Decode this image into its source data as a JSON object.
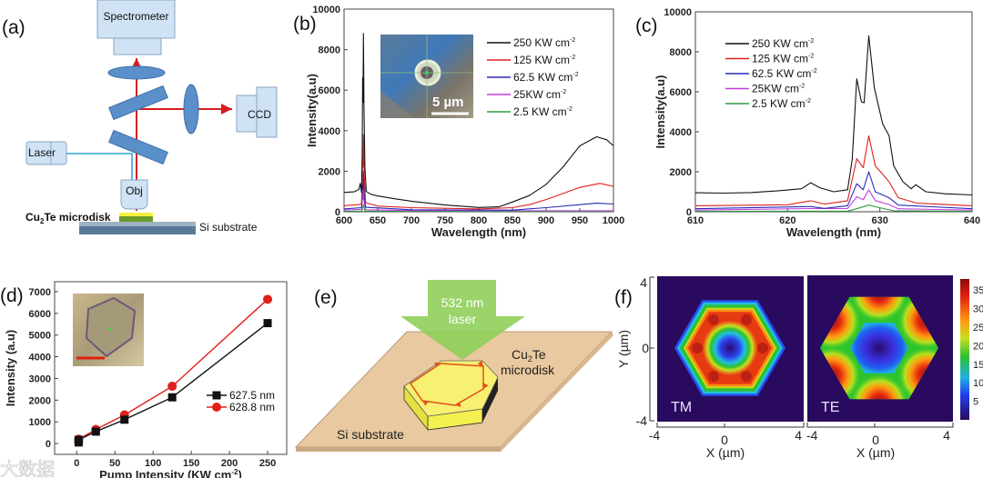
{
  "panel_labels": {
    "a": "(a)",
    "b": "(b)",
    "c": "(c)",
    "d": "(d)",
    "e": "(e)",
    "f": "(f)"
  },
  "setup_diagram": {
    "spectrometer": "Spectrometer",
    "ccd": "CCD",
    "laser": "Laser",
    "objective": "Obj",
    "microdisk_label": "Cu",
    "microdisk_sub": "2",
    "microdisk_rest": "Te microdisk",
    "substrate_label": "Si substrate"
  },
  "inset_b": {
    "scale_bar": "5 µm"
  },
  "diagram_e": {
    "laser_line1": "532 nm",
    "laser_line2": "laser",
    "disk_line1_a": "Cu",
    "disk_line1_sub": "2",
    "disk_line1_b": "Te",
    "disk_line2": "microdisk",
    "substrate": "Si substrate"
  },
  "watermark": "大数据",
  "colors": {
    "black": "#111111",
    "red": "#e0201c",
    "blue": "#2a2ab8",
    "magenta": "#c23ee0",
    "green": "#2f9a3f"
  },
  "chart_data": [
    {
      "id": "b",
      "type": "line",
      "xlabel": "Wavelength (nm)",
      "ylabel": "Intensity(a.u)",
      "xlim": [
        600,
        1000
      ],
      "ylim": [
        0,
        10000
      ],
      "xticks": [
        600,
        650,
        700,
        750,
        800,
        850,
        900,
        950,
        1000
      ],
      "yticks": [
        0,
        2000,
        4000,
        6000,
        8000,
        10000
      ],
      "legend": "top-right",
      "series": [
        {
          "name": "250 KW cm",
          "sup": "-2",
          "color": "#111111",
          "points": [
            [
              600,
              950
            ],
            [
              615,
              980
            ],
            [
              622,
              1100
            ],
            [
              624,
              1400
            ],
            [
              626,
              950
            ],
            [
              627,
              3000
            ],
            [
              627.5,
              6600
            ],
            [
              628.1,
              5400
            ],
            [
              628.8,
              8800
            ],
            [
              629.6,
              5200
            ],
            [
              631,
              2200
            ],
            [
              633,
              1000
            ],
            [
              640,
              860
            ],
            [
              650,
              780
            ],
            [
              675,
              640
            ],
            [
              700,
              520
            ],
            [
              750,
              330
            ],
            [
              800,
              210
            ],
            [
              830,
              240
            ],
            [
              850,
              480
            ],
            [
              875,
              800
            ],
            [
              900,
              1350
            ],
            [
              925,
              2200
            ],
            [
              950,
              3250
            ],
            [
              975,
              3700
            ],
            [
              990,
              3550
            ],
            [
              1000,
              3250
            ]
          ]
        },
        {
          "name": "125 KW cm",
          "sup": "-2",
          "color": "#e0201c",
          "points": [
            [
              600,
              300
            ],
            [
              622,
              350
            ],
            [
              626,
              400
            ],
            [
              627.5,
              2600
            ],
            [
              628.1,
              2200
            ],
            [
              628.8,
              3800
            ],
            [
              630,
              1800
            ],
            [
              632,
              450
            ],
            [
              650,
              280
            ],
            [
              700,
              200
            ],
            [
              800,
              140
            ],
            [
              850,
              200
            ],
            [
              875,
              350
            ],
            [
              900,
              600
            ],
            [
              950,
              1200
            ],
            [
              980,
              1400
            ],
            [
              1000,
              1250
            ]
          ]
        },
        {
          "name": "62.5 KW cm",
          "sup": "-2",
          "color": "#2a2ab8",
          "points": [
            [
              600,
              140
            ],
            [
              626,
              200
            ],
            [
              627.5,
              1350
            ],
            [
              628.1,
              1100
            ],
            [
              628.8,
              2000
            ],
            [
              630,
              800
            ],
            [
              632,
              220
            ],
            [
              700,
              100
            ],
            [
              850,
              80
            ],
            [
              900,
              200
            ],
            [
              950,
              350
            ],
            [
              975,
              420
            ],
            [
              1000,
              380
            ]
          ]
        },
        {
          "name": "25KW cm",
          "sup": "-2",
          "color": "#c23ee0",
          "points": [
            [
              600,
              80
            ],
            [
              626,
              120
            ],
            [
              627.5,
              750
            ],
            [
              628.1,
              600
            ],
            [
              628.8,
              1050
            ],
            [
              630,
              450
            ],
            [
              632,
              100
            ],
            [
              700,
              60
            ],
            [
              1000,
              50
            ]
          ]
        },
        {
          "name": "2.5 KW cm",
          "sup": "-2",
          "color": "#2f9a3f",
          "points": [
            [
              600,
              20
            ],
            [
              626.5,
              30
            ],
            [
              628.8,
              350
            ],
            [
              631,
              30
            ],
            [
              1000,
              20
            ]
          ]
        }
      ]
    },
    {
      "id": "c",
      "type": "line",
      "xlabel": "Wavelength (nm)",
      "ylabel": "Intensity(a.u)",
      "xlim": [
        610,
        640
      ],
      "ylim": [
        0,
        10000
      ],
      "xticks": [
        610,
        620,
        630,
        640
      ],
      "yticks": [
        0,
        2000,
        4000,
        6000,
        8000,
        10000
      ],
      "legend": "top-left",
      "series": [
        {
          "name": "250 KW cm",
          "sup": "-2",
          "color": "#111111",
          "points": [
            [
              610,
              950
            ],
            [
              613,
              930
            ],
            [
              616,
              960
            ],
            [
              619,
              1050
            ],
            [
              621.5,
              1150
            ],
            [
              622.5,
              1450
            ],
            [
              623.5,
              1200
            ],
            [
              625,
              1000
            ],
            [
              626.5,
              1100
            ],
            [
              627,
              2600
            ],
            [
              627.5,
              6650
            ],
            [
              628,
              5500
            ],
            [
              628.3,
              5450
            ],
            [
              628.8,
              8800
            ],
            [
              629.4,
              6200
            ],
            [
              630.3,
              4400
            ],
            [
              631,
              3800
            ],
            [
              631.5,
              2300
            ],
            [
              632.5,
              1500
            ],
            [
              633.4,
              1150
            ],
            [
              633.9,
              1350
            ],
            [
              635,
              1000
            ],
            [
              637,
              900
            ],
            [
              640,
              840
            ]
          ]
        },
        {
          "name": "125 KW cm",
          "sup": "-2",
          "color": "#e0201c",
          "points": [
            [
              610,
              300
            ],
            [
              620,
              350
            ],
            [
              622.5,
              550
            ],
            [
              624,
              380
            ],
            [
              626.5,
              550
            ],
            [
              627.5,
              2650
            ],
            [
              628.2,
              2200
            ],
            [
              628.8,
              3800
            ],
            [
              629.5,
              2300
            ],
            [
              631,
              1500
            ],
            [
              632,
              700
            ],
            [
              634,
              430
            ],
            [
              640,
              300
            ]
          ]
        },
        {
          "name": "62.5 KW cm",
          "sup": "-2",
          "color": "#2a2ab8",
          "points": [
            [
              610,
              150
            ],
            [
              622.5,
              260
            ],
            [
              624,
              170
            ],
            [
              626.5,
              300
            ],
            [
              627.5,
              1400
            ],
            [
              628.2,
              1100
            ],
            [
              628.8,
              2000
            ],
            [
              629.5,
              1000
            ],
            [
              631,
              700
            ],
            [
              632,
              330
            ],
            [
              640,
              150
            ]
          ]
        },
        {
          "name": "25KW cm",
          "sup": "-2",
          "color": "#c23ee0",
          "points": [
            [
              610,
              80
            ],
            [
              622.5,
              160
            ],
            [
              626.5,
              160
            ],
            [
              627.5,
              750
            ],
            [
              628.2,
              600
            ],
            [
              628.8,
              1100
            ],
            [
              629.5,
              560
            ],
            [
              631,
              360
            ],
            [
              632,
              150
            ],
            [
              640,
              80
            ]
          ]
        },
        {
          "name": "2.5 KW cm",
          "sup": "-2",
          "color": "#2f9a3f",
          "points": [
            [
              610,
              20
            ],
            [
              626.5,
              30
            ],
            [
              627.5,
              150
            ],
            [
              628.8,
              330
            ],
            [
              630,
              200
            ],
            [
              631.5,
              50
            ],
            [
              640,
              20
            ]
          ]
        }
      ]
    },
    {
      "id": "d",
      "type": "line",
      "xlabel": "Pump Intensity (KW cm",
      "xlabel_sup": "-2",
      "xlabel_end": ")",
      "ylabel": "Intensity (a.u)",
      "xlim": [
        -29,
        275
      ],
      "ylim": [
        -500,
        7460
      ],
      "xticks": [
        0,
        50,
        100,
        150,
        200,
        250
      ],
      "yticks": [
        0,
        1000,
        2000,
        3000,
        4000,
        5000,
        6000,
        7000
      ],
      "legend": "right",
      "series": [
        {
          "name": "627.5 nm",
          "marker": "square",
          "color": "#111111",
          "points": [
            [
              2.5,
              50
            ],
            [
              2.5,
              170
            ],
            [
              25,
              550
            ],
            [
              62.5,
              1100
            ],
            [
              125,
              2130
            ],
            [
              250,
              5550
            ]
          ]
        },
        {
          "name": "628.8 nm",
          "marker": "circle",
          "color": "#e0201c",
          "points": [
            [
              2.5,
              80
            ],
            [
              2.5,
              200
            ],
            [
              25,
              650
            ],
            [
              62.5,
              1320
            ],
            [
              125,
              2640
            ],
            [
              250,
              6650
            ]
          ]
        }
      ]
    },
    {
      "id": "f",
      "type": "heatmap",
      "maps": [
        "TM",
        "TE"
      ],
      "xlabel": "X (µm)",
      "ylabel": "Y (µm)",
      "xlim": [
        -4,
        4
      ],
      "ylim": [
        -4,
        4
      ],
      "xtick_labels": [
        "-4",
        "0",
        "4"
      ],
      "ytick_labels": [
        "4",
        "0",
        "-4"
      ],
      "colorbar_ticks": [
        35,
        30,
        25,
        20,
        15,
        10,
        5
      ],
      "colorbar_range": [
        0,
        38
      ]
    }
  ]
}
